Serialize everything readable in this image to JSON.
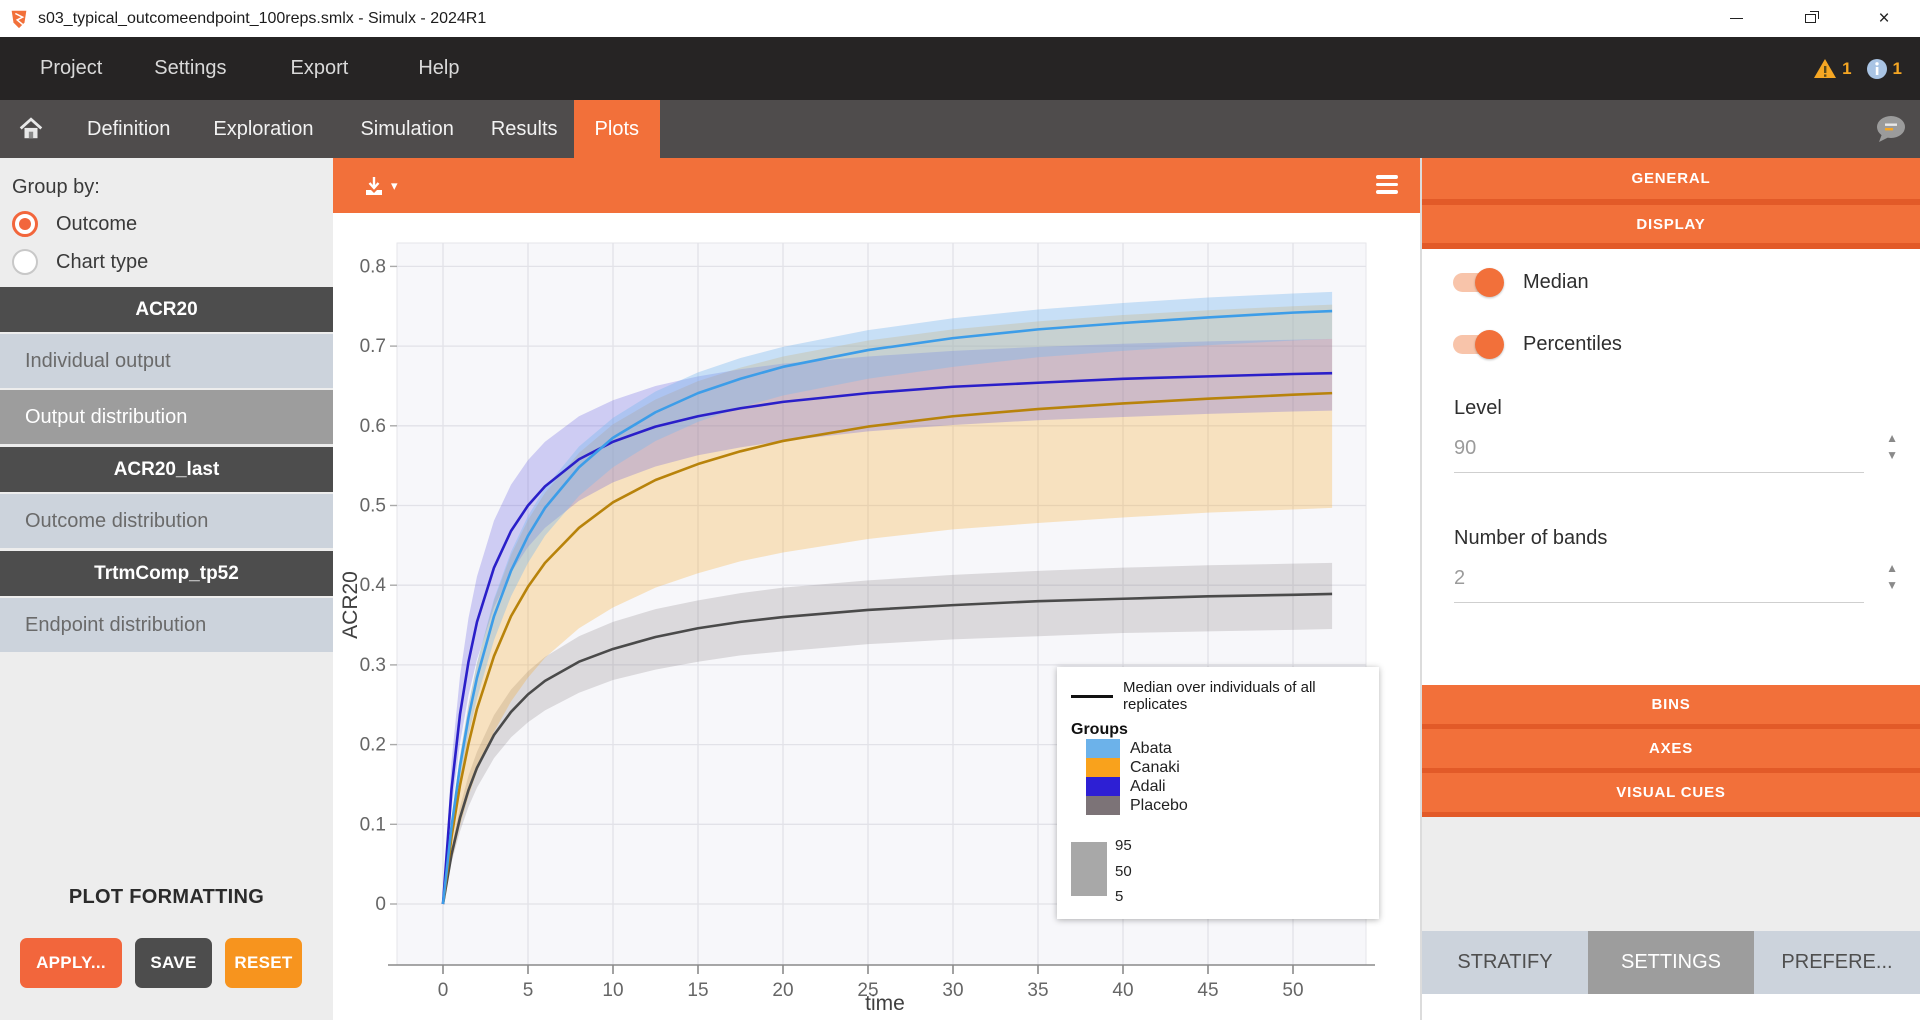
{
  "window": {
    "title": "s03_typical_outcomeendpoint_100reps.smlx - Simulx - 2024R1",
    "close_glyph": "×"
  },
  "menubar": {
    "items": [
      "Project",
      "Settings",
      "Export",
      "Help"
    ],
    "warning_count": "1",
    "info_count": "1"
  },
  "navbar": {
    "tabs": [
      "Definition",
      "Exploration",
      "Simulation",
      "Results",
      "Plots"
    ],
    "active_tab": "Plots"
  },
  "sidebar": {
    "group_by_label": "Group by:",
    "group_by_options": [
      {
        "label": "Outcome",
        "selected": true
      },
      {
        "label": "Chart type",
        "selected": false
      }
    ],
    "rows": [
      {
        "label": "ACR20",
        "kind": "outcome-header"
      },
      {
        "label": "Individual output",
        "kind": "plot-item",
        "selected": false
      },
      {
        "label": "Output distribution",
        "kind": "plot-item",
        "selected": true
      },
      {
        "label": "ACR20_last",
        "kind": "outcome-header"
      },
      {
        "label": "Outcome distribution",
        "kind": "plot-item",
        "selected": false
      },
      {
        "label": "TrtmComp_tp52",
        "kind": "outcome-header"
      },
      {
        "label": "Endpoint distribution",
        "kind": "plot-item",
        "selected": false
      }
    ],
    "plot_formatting_label": "PLOT FORMATTING",
    "buttons": [
      {
        "label": "APPLY..."
      },
      {
        "label": "SAVE"
      },
      {
        "label": "RESET"
      }
    ]
  },
  "right_panel": {
    "sections": {
      "general": "GENERAL",
      "display": "DISPLAY",
      "bins": "BINS",
      "axes": "AXES",
      "visual_cues": "VISUAL CUES"
    },
    "toggles": [
      {
        "label": "Median",
        "on": true
      },
      {
        "label": "Percentiles",
        "on": true
      }
    ],
    "fields": [
      {
        "label": "Level",
        "value": "90"
      },
      {
        "label": "Number of bands",
        "value": "2"
      }
    ],
    "bottom_tabs": [
      {
        "label": "STRATIFY",
        "active": false
      },
      {
        "label": "SETTINGS",
        "active": true
      },
      {
        "label": "PREFERE...",
        "active": false
      }
    ]
  },
  "chart_data": {
    "type": "line",
    "title": "",
    "xlabel": "time",
    "ylabel": "ACR20",
    "xlim": [
      -2.7,
      54.3
    ],
    "ylim": [
      -0.077,
      0.829
    ],
    "xticks": [
      0,
      5,
      10,
      15,
      20,
      25,
      30,
      35,
      40,
      45,
      50
    ],
    "yticks": [
      0,
      0.1,
      0.2,
      0.3,
      0.4,
      0.5,
      0.6,
      0.7,
      0.8
    ],
    "grid": true,
    "legend_position": "lower-right overlay box",
    "x": [
      0,
      0.5,
      1,
      1.5,
      2,
      3,
      4,
      5,
      6,
      8,
      10,
      12.5,
      15,
      17.5,
      20,
      25,
      30,
      35,
      40,
      45,
      50,
      52.3
    ],
    "series": [
      {
        "name": "Abata",
        "legend_color": "#6cb2ea",
        "line_color": "#3d9de8",
        "band_rgba": "rgba(120,185,238,0.38)",
        "median": [
          0,
          0.097,
          0.173,
          0.234,
          0.284,
          0.361,
          0.418,
          0.462,
          0.497,
          0.548,
          0.585,
          0.617,
          0.641,
          0.659,
          0.674,
          0.695,
          0.71,
          0.721,
          0.729,
          0.736,
          0.742,
          0.744
        ],
        "p95": [
          0,
          0.105,
          0.186,
          0.25,
          0.303,
          0.383,
          0.442,
          0.487,
          0.522,
          0.574,
          0.61,
          0.643,
          0.667,
          0.685,
          0.699,
          0.72,
          0.735,
          0.746,
          0.754,
          0.761,
          0.766,
          0.768
        ],
        "p5": [
          0,
          0.087,
          0.156,
          0.212,
          0.258,
          0.331,
          0.386,
          0.428,
          0.462,
          0.512,
          0.548,
          0.581,
          0.605,
          0.623,
          0.638,
          0.659,
          0.674,
          0.686,
          0.694,
          0.701,
          0.707,
          0.709
        ]
      },
      {
        "name": "Canaki",
        "legend_color": "#f9a21c",
        "line_color": "#b8830b",
        "band_rgba": "rgba(246,166,35,0.27)",
        "median": [
          0,
          0.084,
          0.149,
          0.201,
          0.245,
          0.311,
          0.361,
          0.398,
          0.428,
          0.472,
          0.504,
          0.532,
          0.552,
          0.568,
          0.581,
          0.599,
          0.612,
          0.621,
          0.628,
          0.634,
          0.639,
          0.641
        ],
        "p95": [
          0,
          0.105,
          0.186,
          0.25,
          0.302,
          0.381,
          0.438,
          0.482,
          0.516,
          0.566,
          0.602,
          0.633,
          0.656,
          0.673,
          0.687,
          0.707,
          0.721,
          0.731,
          0.739,
          0.745,
          0.75,
          0.752
        ],
        "p5": [
          0,
          0.054,
          0.098,
          0.135,
          0.166,
          0.216,
          0.254,
          0.284,
          0.309,
          0.346,
          0.372,
          0.397,
          0.415,
          0.43,
          0.441,
          0.458,
          0.47,
          0.478,
          0.485,
          0.491,
          0.495,
          0.497
        ]
      },
      {
        "name": "Adali",
        "legend_color": "#2d1fd4",
        "line_color": "#2a1fc9",
        "band_rgba": "rgba(90,80,225,0.26)",
        "median": [
          0,
          0.144,
          0.238,
          0.304,
          0.354,
          0.422,
          0.468,
          0.5,
          0.524,
          0.558,
          0.58,
          0.599,
          0.612,
          0.622,
          0.63,
          0.641,
          0.649,
          0.654,
          0.659,
          0.662,
          0.665,
          0.666
        ],
        "p95": [
          0,
          0.178,
          0.286,
          0.359,
          0.411,
          0.481,
          0.526,
          0.557,
          0.58,
          0.612,
          0.632,
          0.65,
          0.662,
          0.671,
          0.678,
          0.687,
          0.694,
          0.699,
          0.703,
          0.706,
          0.708,
          0.709
        ],
        "p5": [
          0,
          0.119,
          0.202,
          0.262,
          0.307,
          0.372,
          0.416,
          0.448,
          0.472,
          0.506,
          0.529,
          0.549,
          0.563,
          0.573,
          0.581,
          0.593,
          0.601,
          0.607,
          0.611,
          0.615,
          0.618,
          0.619
        ]
      },
      {
        "name": "Placebo",
        "legend_color": "#7c7377",
        "line_color": "#4a4a4a",
        "band_rgba": "rgba(130,122,126,0.24)",
        "median": [
          0,
          0.062,
          0.108,
          0.143,
          0.171,
          0.212,
          0.241,
          0.263,
          0.28,
          0.304,
          0.32,
          0.335,
          0.346,
          0.354,
          0.36,
          0.369,
          0.375,
          0.38,
          0.383,
          0.386,
          0.388,
          0.389
        ],
        "p95": [
          0,
          0.07,
          0.122,
          0.161,
          0.191,
          0.237,
          0.269,
          0.292,
          0.31,
          0.336,
          0.354,
          0.37,
          0.381,
          0.39,
          0.397,
          0.406,
          0.413,
          0.418,
          0.422,
          0.425,
          0.427,
          0.428
        ],
        "p5": [
          0,
          0.052,
          0.091,
          0.122,
          0.146,
          0.183,
          0.209,
          0.228,
          0.243,
          0.265,
          0.281,
          0.294,
          0.304,
          0.312,
          0.317,
          0.326,
          0.332,
          0.336,
          0.34,
          0.342,
          0.344,
          0.345
        ]
      }
    ],
    "legend": {
      "median_label": "Median over individuals of all replicates",
      "median_line_color": "#111111",
      "groups_title": "Groups",
      "percentile_labels": [
        "95",
        "50",
        "5"
      ],
      "percentile_swatch_color": "#a8a8a8"
    }
  }
}
